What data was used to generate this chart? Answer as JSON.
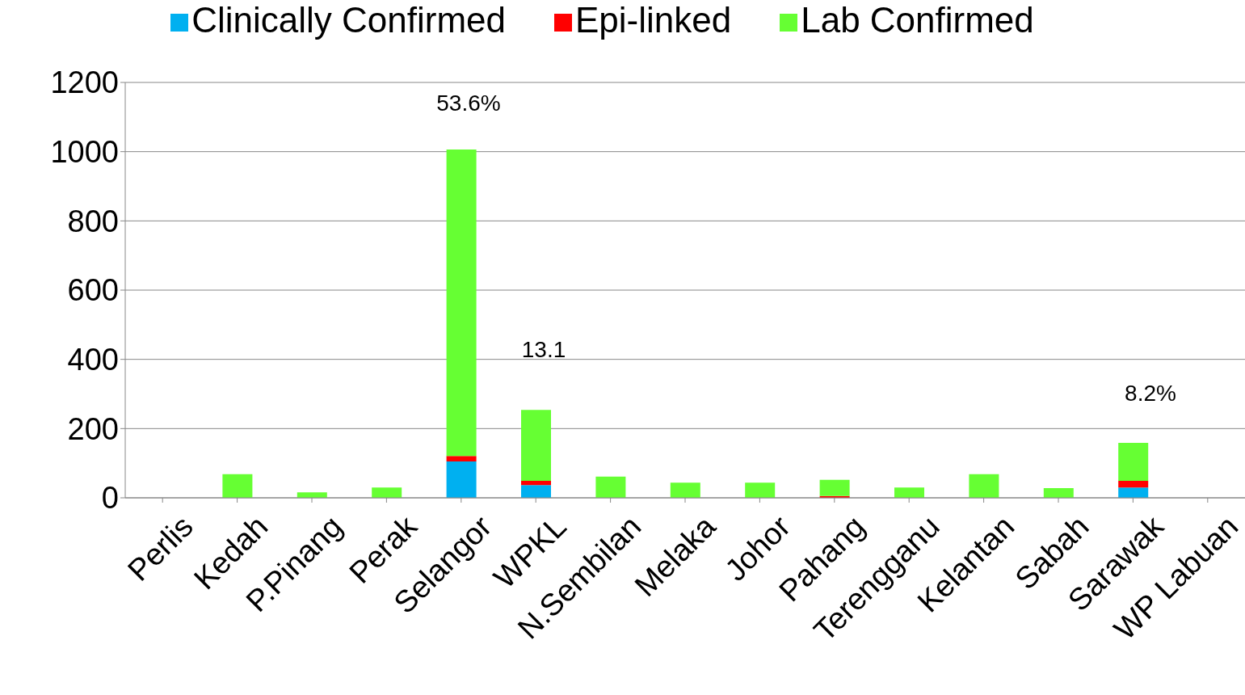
{
  "chart_data": {
    "type": "bar",
    "stacked": true,
    "categories": [
      "Perlis",
      "Kedah",
      "P.Pinang",
      "Perak",
      "Selangor",
      "WPKL",
      "N.Sembilan",
      "Melaka",
      "Johor",
      "Pahang",
      "Terengganu",
      "Kelantan",
      "Sabah",
      "Sarawak",
      "WP Labuan"
    ],
    "series": [
      {
        "name": "Clinically  Confirmed",
        "color": "#00b0f0",
        "values": [
          0,
          0,
          0,
          0,
          105,
          37,
          0,
          0,
          0,
          0,
          0,
          0,
          0,
          30,
          0
        ]
      },
      {
        "name": "Epi-linked",
        "color": "#ff0000",
        "values": [
          0,
          0,
          0,
          0,
          16,
          12,
          0,
          0,
          0,
          5,
          0,
          0,
          0,
          19,
          0
        ]
      },
      {
        "name": "Lab Confirmed",
        "color": "#66ff33",
        "values": [
          0,
          68,
          16,
          30,
          885,
          205,
          61,
          44,
          44,
          47,
          30,
          68,
          28,
          110,
          0
        ]
      }
    ],
    "ylim": [
      0,
      1200
    ],
    "yticks": [
      0,
      200,
      400,
      600,
      800,
      1000,
      1200
    ],
    "grid": "y",
    "legend": "top",
    "annotations": [
      "53.6%",
      "13.1",
      "8.2%"
    ]
  }
}
